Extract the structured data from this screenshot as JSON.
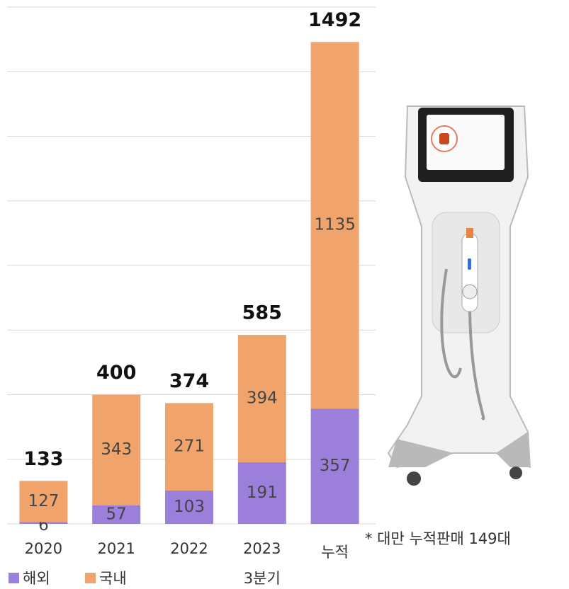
{
  "chart_data": {
    "type": "bar",
    "stacked": true,
    "categories": [
      "2020",
      "2021",
      "2022",
      "2023",
      "누적"
    ],
    "series": [
      {
        "name": "해외",
        "color": "#9b7fdb",
        "values": [
          6,
          57,
          103,
          191,
          357
        ]
      },
      {
        "name": "국내",
        "color": "#f0a46b",
        "values": [
          127,
          343,
          271,
          394,
          1135
        ]
      }
    ],
    "totals": [
      133,
      400,
      374,
      585,
      1492
    ],
    "ylim": [
      0,
      1600
    ],
    "yticks": [
      0,
      200,
      400,
      600,
      800,
      1000,
      1200,
      1400,
      1600
    ],
    "grid": true,
    "category_note": "3분기",
    "annotation": "* 대만 누적판매 149대"
  }
}
